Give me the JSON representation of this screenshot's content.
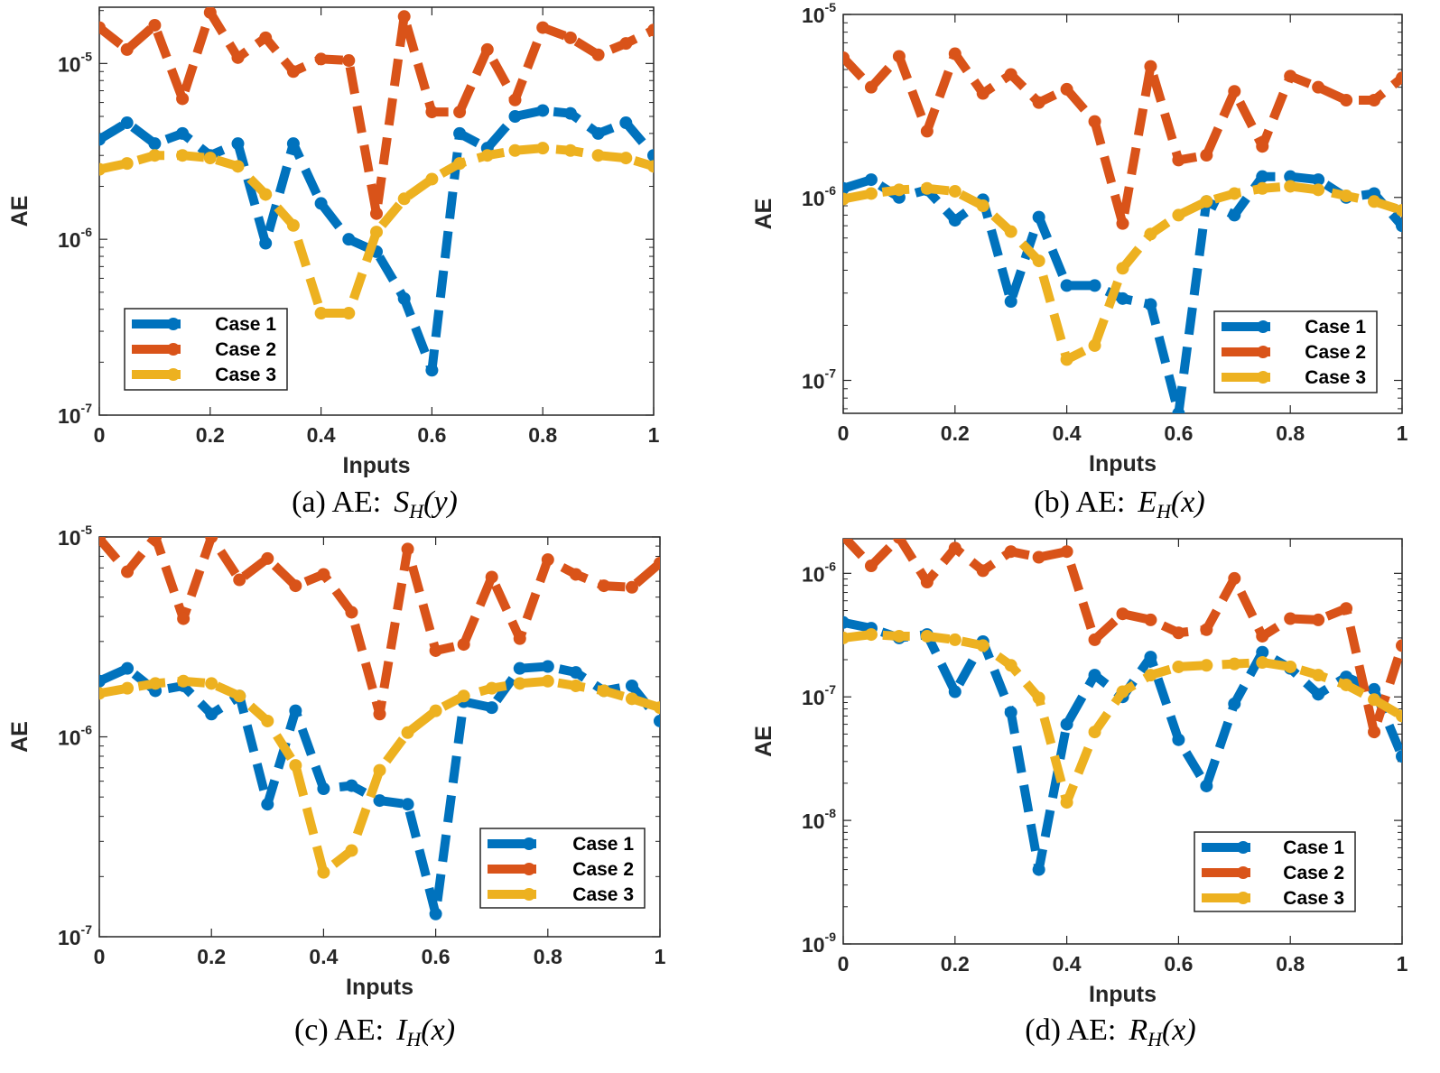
{
  "colors": {
    "case1": "#0072BD",
    "case2": "#D95319",
    "case3": "#EDB120"
  },
  "chart_data": [
    {
      "type": "line",
      "panel": "a",
      "caption_prefix": "(a) AE:",
      "caption_func": "S",
      "caption_sub": "H",
      "caption_arg": "(y)",
      "xlabel": "Inputs",
      "ylabel": "AE",
      "yscale": "log",
      "xlim": [
        0,
        1
      ],
      "ylim_exp": [
        -7,
        -4.68
      ],
      "x_ticks": [
        "0",
        "0.2",
        "0.4",
        "0.6",
        "0.8",
        "1"
      ],
      "y_ticks": [
        {
          "base": "10",
          "exp": "-7",
          "value": -7
        },
        {
          "base": "10",
          "exp": "-6",
          "value": -6
        },
        {
          "base": "10",
          "exp": "-5",
          "value": -5
        }
      ],
      "legend_position": "lower-left",
      "x": [
        0,
        0.05,
        0.1,
        0.15,
        0.2,
        0.25,
        0.3,
        0.35,
        0.4,
        0.45,
        0.5,
        0.55,
        0.6,
        0.65,
        0.7,
        0.75,
        0.8,
        0.85,
        0.9,
        0.95,
        1
      ],
      "series": [
        {
          "name": "Case 1",
          "values": [
            3.7e-06,
            4.6e-06,
            3.5e-06,
            4e-06,
            3e-06,
            3.5e-06,
            9.5e-07,
            3.5e-06,
            1.6e-06,
            1e-06,
            8.5e-07,
            4.6e-07,
            1.8e-07,
            4e-06,
            3.3e-06,
            5e-06,
            5.4e-06,
            5.2e-06,
            4e-06,
            4.6e-06,
            3e-06
          ]
        },
        {
          "name": "Case 2",
          "values": [
            1.6e-05,
            1.2e-05,
            1.65e-05,
            6.3e-06,
            1.95e-05,
            1.08e-05,
            1.4e-05,
            9e-06,
            1.06e-05,
            1.04e-05,
            1.4e-06,
            1.85e-05,
            5.3e-06,
            5.3e-06,
            1.2e-05,
            6.2e-06,
            1.6e-05,
            1.4e-05,
            1.12e-05,
            1.3e-05,
            1.55e-05
          ]
        },
        {
          "name": "Case 3",
          "values": [
            2.5e-06,
            2.7e-06,
            3e-06,
            3e-06,
            2.9e-06,
            2.6e-06,
            1.8e-06,
            1.2e-06,
            3.8e-07,
            3.8e-07,
            1.1e-06,
            1.7e-06,
            2.2e-06,
            2.7e-06,
            3e-06,
            3.2e-06,
            3.3e-06,
            3.2e-06,
            3e-06,
            2.9e-06,
            2.6e-06
          ]
        }
      ]
    },
    {
      "type": "line",
      "panel": "b",
      "caption_prefix": "(b) AE:",
      "caption_func": "E",
      "caption_sub": "H",
      "caption_arg": "(x)",
      "xlabel": "Inputs",
      "ylabel": "AE",
      "yscale": "log",
      "xlim": [
        0,
        1
      ],
      "ylim_exp": [
        -7.18,
        -5
      ],
      "x_ticks": [
        "0",
        "0.2",
        "0.4",
        "0.6",
        "0.8",
        "1"
      ],
      "y_ticks": [
        {
          "base": "10",
          "exp": "-7",
          "value": -7
        },
        {
          "base": "10",
          "exp": "-6",
          "value": -6
        },
        {
          "base": "10",
          "exp": "-5",
          "value": -5
        }
      ],
      "legend_position": "lower-right",
      "x": [
        0,
        0.05,
        0.1,
        0.15,
        0.2,
        0.25,
        0.3,
        0.35,
        0.4,
        0.45,
        0.5,
        0.55,
        0.6,
        0.65,
        0.7,
        0.75,
        0.8,
        0.85,
        0.9,
        0.95,
        1
      ],
      "series": [
        {
          "name": "Case 1",
          "values": [
            1.12e-06,
            1.25e-06,
            1e-06,
            1.1e-06,
            7.5e-07,
            9.7e-07,
            2.7e-07,
            7.8e-07,
            3.3e-07,
            3.3e-07,
            2.8e-07,
            2.6e-07,
            6.6e-08,
            9.5e-07,
            8e-07,
            1.3e-06,
            1.3e-06,
            1.25e-06,
            1e-06,
            1.05e-06,
            7e-07
          ]
        },
        {
          "name": "Case 2",
          "values": [
            5.8e-06,
            4e-06,
            5.9e-06,
            2.3e-06,
            6.1e-06,
            3.7e-06,
            4.7e-06,
            3.3e-06,
            3.9e-06,
            2.6e-06,
            7.2e-07,
            5.2e-06,
            1.6e-06,
            1.7e-06,
            3.8e-06,
            1.9e-06,
            4.6e-06,
            4e-06,
            3.4e-06,
            3.4e-06,
            4.5e-06
          ]
        },
        {
          "name": "Case 3",
          "values": [
            9.8e-07,
            1.05e-06,
            1.1e-06,
            1.12e-06,
            1.08e-06,
            9e-07,
            6.5e-07,
            4.5e-07,
            1.3e-07,
            1.55e-07,
            4.1e-07,
            6.3e-07,
            8e-07,
            9.5e-07,
            1.05e-06,
            1.12e-06,
            1.15e-06,
            1.1e-06,
            1.02e-06,
            9.5e-07,
            8.5e-07
          ]
        }
      ]
    },
    {
      "type": "line",
      "panel": "c",
      "caption_prefix": "(c) AE:",
      "caption_func": "I",
      "caption_sub": "H",
      "caption_arg": "(x)",
      "xlabel": "Inputs",
      "ylabel": "AE",
      "yscale": "log",
      "xlim": [
        0,
        1
      ],
      "ylim_exp": [
        -7,
        -5
      ],
      "x_ticks": [
        "0",
        "0.2",
        "0.4",
        "0.6",
        "0.8",
        "1"
      ],
      "y_ticks": [
        {
          "base": "10",
          "exp": "-7",
          "value": -7
        },
        {
          "base": "10",
          "exp": "-6",
          "value": -6
        },
        {
          "base": "10",
          "exp": "-5",
          "value": -5
        }
      ],
      "legend_position": "lower-right",
      "x": [
        0,
        0.05,
        0.1,
        0.15,
        0.2,
        0.25,
        0.3,
        0.35,
        0.4,
        0.45,
        0.5,
        0.55,
        0.6,
        0.65,
        0.7,
        0.75,
        0.8,
        0.85,
        0.9,
        0.95,
        1
      ],
      "series": [
        {
          "name": "Case 1",
          "values": [
            1.9e-06,
            2.2e-06,
            1.7e-06,
            1.8e-06,
            1.3e-06,
            1.6e-06,
            4.6e-07,
            1.35e-06,
            5.5e-07,
            5.7e-07,
            4.8e-07,
            4.6e-07,
            1.3e-07,
            1.5e-06,
            1.4e-06,
            2.2e-06,
            2.25e-06,
            2.1e-06,
            1.7e-06,
            1.8e-06,
            1.2e-06
          ]
        },
        {
          "name": "Case 2",
          "values": [
            9.8e-06,
            6.7e-06,
            1e-05,
            3.9e-06,
            1e-05,
            6.1e-06,
            7.8e-06,
            5.7e-06,
            6.5e-06,
            4.2e-06,
            1.3e-06,
            8.7e-06,
            2.7e-06,
            2.9e-06,
            6.3e-06,
            3.1e-06,
            7.7e-06,
            6.5e-06,
            5.7e-06,
            5.6e-06,
            7.4e-06
          ]
        },
        {
          "name": "Case 3",
          "values": [
            1.65e-06,
            1.75e-06,
            1.85e-06,
            1.9e-06,
            1.85e-06,
            1.6e-06,
            1.2e-06,
            7.2e-07,
            2.1e-07,
            2.7e-07,
            6.8e-07,
            1.05e-06,
            1.35e-06,
            1.6e-06,
            1.75e-06,
            1.85e-06,
            1.9e-06,
            1.8e-06,
            1.7e-06,
            1.55e-06,
            1.4e-06
          ]
        }
      ]
    },
    {
      "type": "line",
      "panel": "d",
      "caption_prefix": "(d) AE:",
      "caption_func": "R",
      "caption_sub": "H",
      "caption_arg": "(x)",
      "xlabel": "Inputs",
      "ylabel": "AE",
      "yscale": "log",
      "xlim": [
        0,
        1
      ],
      "ylim_exp": [
        -9,
        -5.72
      ],
      "x_ticks": [
        "0",
        "0.2",
        "0.4",
        "0.6",
        "0.8",
        "1"
      ],
      "y_ticks": [
        {
          "base": "10",
          "exp": "-9",
          "value": -9
        },
        {
          "base": "10",
          "exp": "-8",
          "value": -8
        },
        {
          "base": "10",
          "exp": "-7",
          "value": -7
        },
        {
          "base": "10",
          "exp": "-6",
          "value": -6
        }
      ],
      "legend_position": "lower-right",
      "x": [
        0,
        0.05,
        0.1,
        0.15,
        0.2,
        0.25,
        0.3,
        0.35,
        0.4,
        0.45,
        0.5,
        0.55,
        0.6,
        0.65,
        0.7,
        0.75,
        0.8,
        0.85,
        0.9,
        0.95,
        1
      ],
      "series": [
        {
          "name": "Case 1",
          "values": [
            4e-07,
            3.6e-07,
            3e-07,
            3.2e-07,
            1.1e-07,
            2.8e-07,
            7.5e-08,
            4e-09,
            6e-08,
            1.5e-07,
            1e-07,
            2.1e-07,
            4.5e-08,
            1.9e-08,
            8.8e-08,
            2.3e-07,
            1.7e-07,
            1.05e-07,
            1.45e-07,
            1.15e-07,
            3.3e-08
          ]
        },
        {
          "name": "Case 2",
          "values": [
            2e-06,
            1.15e-06,
            1.95e-06,
            8.5e-07,
            1.6e-06,
            1.05e-06,
            1.5e-06,
            1.35e-06,
            1.5e-06,
            2.9e-07,
            4.7e-07,
            4.2e-07,
            3.3e-07,
            3.5e-07,
            9.1e-07,
            3.1e-07,
            4.3e-07,
            4.2e-07,
            5.2e-07,
            5.2e-08,
            2.6e-07
          ]
        },
        {
          "name": "Case 3",
          "values": [
            3e-07,
            3.2e-07,
            3.1e-07,
            3.1e-07,
            2.9e-07,
            2.6e-07,
            1.8e-07,
            9.8e-08,
            1.4e-08,
            5.2e-08,
            1.1e-07,
            1.5e-07,
            1.75e-07,
            1.8e-07,
            1.85e-07,
            1.9e-07,
            1.75e-07,
            1.5e-07,
            1.25e-07,
            9.5e-08,
            7e-08
          ]
        }
      ]
    }
  ]
}
